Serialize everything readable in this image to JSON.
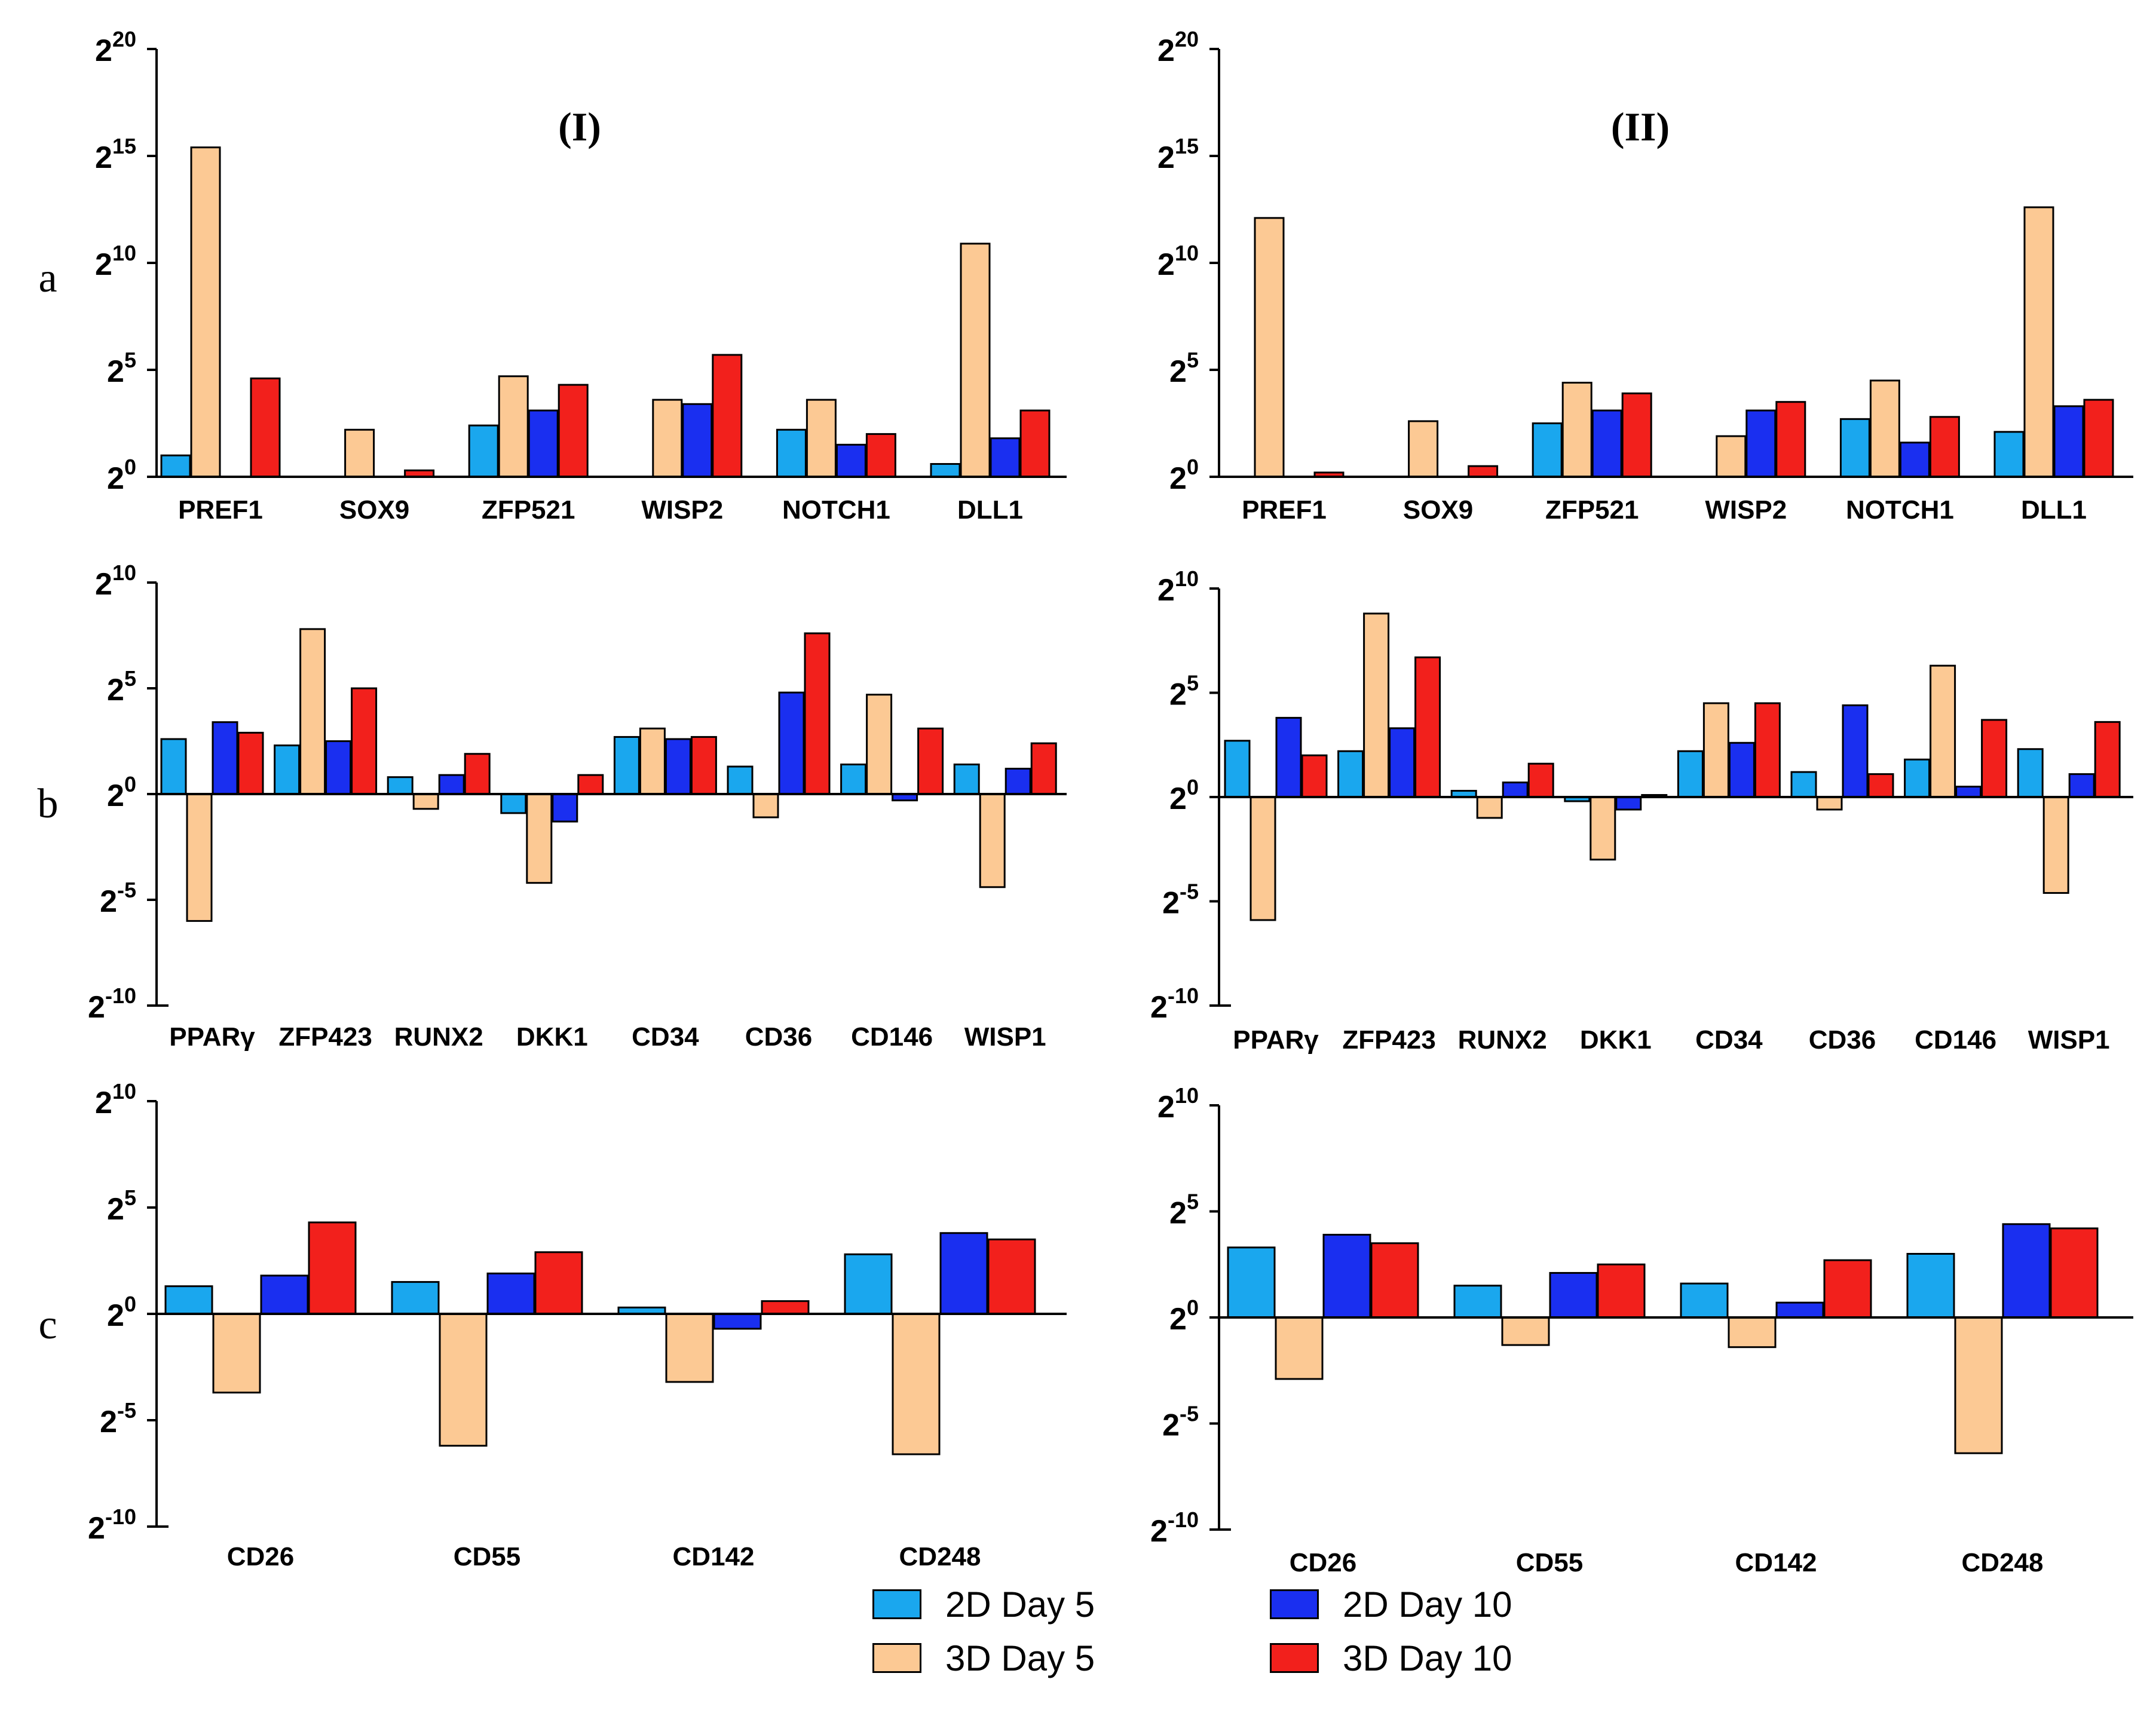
{
  "colors": {
    "2d_day5": "#1aa7ee",
    "3d_day5": "#fcc994",
    "2d_day10": "#1a2ff0",
    "3d_day10": "#f2201c"
  },
  "legend": {
    "items": [
      {
        "label": "2D Day 5",
        "color": "#1aa7ee"
      },
      {
        "label": "3D Day 5",
        "color": "#fcc994"
      },
      {
        "label": "2D Day 10",
        "color": "#1a2ff0"
      },
      {
        "label": "3D Day 10",
        "color": "#f2201c"
      }
    ]
  },
  "row_labels": [
    "a",
    "b",
    "c"
  ],
  "chart_data": [
    {
      "id": "a-I",
      "type": "bar",
      "row": "a",
      "title": "(I)",
      "y_unit": "log2",
      "ylim": [
        0,
        20
      ],
      "yticks": [
        0,
        5,
        10,
        15,
        20
      ],
      "baseline": 0,
      "categories": [
        "PREF1",
        "SOX9",
        "ZFP521",
        "WISP2",
        "NOTCH1",
        "DLL1"
      ],
      "series": [
        {
          "name": "2D Day 5",
          "values": [
            1.0,
            0,
            2.4,
            0,
            2.2,
            0.6
          ]
        },
        {
          "name": "3D Day 5",
          "values": [
            15.4,
            2.2,
            4.7,
            3.6,
            3.6,
            10.9
          ]
        },
        {
          "name": "2D Day 10",
          "values": [
            0,
            0,
            3.1,
            3.4,
            1.5,
            1.8
          ]
        },
        {
          "name": "3D Day 10",
          "values": [
            4.6,
            0.3,
            4.3,
            5.7,
            2.0,
            3.1
          ]
        }
      ]
    },
    {
      "id": "a-II",
      "type": "bar",
      "row": "a",
      "title": "(II)",
      "y_unit": "log2",
      "ylim": [
        0,
        20
      ],
      "yticks": [
        0,
        5,
        10,
        15,
        20
      ],
      "baseline": 0,
      "categories": [
        "PREF1",
        "SOX9",
        "ZFP521",
        "WISP2",
        "NOTCH1",
        "DLL1"
      ],
      "series": [
        {
          "name": "2D Day 5",
          "values": [
            0,
            0,
            2.5,
            0,
            2.7,
            2.1
          ]
        },
        {
          "name": "3D Day 5",
          "values": [
            12.1,
            2.6,
            4.4,
            1.9,
            4.5,
            12.6
          ]
        },
        {
          "name": "2D Day 10",
          "values": [
            0,
            0,
            3.1,
            3.1,
            1.6,
            3.3
          ]
        },
        {
          "name": "3D Day 10",
          "values": [
            0.2,
            0.5,
            3.9,
            3.5,
            2.8,
            3.6
          ]
        }
      ]
    },
    {
      "id": "b-I",
      "type": "bar",
      "row": "b",
      "title": "",
      "y_unit": "log2",
      "ylim": [
        -10,
        10
      ],
      "yticks": [
        -10,
        -5,
        0,
        5,
        10
      ],
      "baseline": 0,
      "categories": [
        "PPARγ",
        "ZFP423",
        "RUNX2",
        "DKK1",
        "CD34",
        "CD36",
        "CD146",
        "WISP1"
      ],
      "series": [
        {
          "name": "2D Day 5",
          "values": [
            2.6,
            2.3,
            0.8,
            -0.9,
            2.7,
            1.3,
            1.4,
            1.4
          ]
        },
        {
          "name": "3D Day 5",
          "values": [
            -6.0,
            7.8,
            -0.7,
            -4.2,
            3.1,
            -1.1,
            4.7,
            -4.4
          ]
        },
        {
          "name": "2D Day 10",
          "values": [
            3.4,
            2.5,
            0.9,
            -1.3,
            2.6,
            4.8,
            -0.3,
            1.2
          ]
        },
        {
          "name": "3D Day 10",
          "values": [
            2.9,
            5.0,
            1.9,
            0.9,
            2.7,
            7.6,
            3.1,
            2.4
          ]
        }
      ]
    },
    {
      "id": "b-II",
      "type": "bar",
      "row": "b",
      "title": "",
      "y_unit": "log2",
      "ylim": [
        -10,
        10
      ],
      "yticks": [
        -10,
        -5,
        0,
        5,
        10
      ],
      "baseline": 0,
      "categories": [
        "PPARγ",
        "ZFP423",
        "RUNX2",
        "DKK1",
        "CD34",
        "CD36",
        "CD146",
        "WISP1"
      ],
      "series": [
        {
          "name": "2D Day 5",
          "values": [
            2.7,
            2.2,
            0.3,
            -0.2,
            2.2,
            1.2,
            1.8,
            2.3
          ]
        },
        {
          "name": "3D Day 5",
          "values": [
            -5.9,
            8.8,
            -1.0,
            -3.0,
            4.5,
            -0.6,
            6.3,
            -4.6
          ]
        },
        {
          "name": "2D Day 10",
          "values": [
            3.8,
            3.3,
            0.7,
            -0.6,
            2.6,
            4.4,
            0.5,
            1.1
          ]
        },
        {
          "name": "3D Day 10",
          "values": [
            2.0,
            6.7,
            1.6,
            0.1,
            4.5,
            1.1,
            3.7,
            3.6
          ]
        }
      ]
    },
    {
      "id": "c-I",
      "type": "bar",
      "row": "c",
      "title": "",
      "y_unit": "log2",
      "ylim": [
        -10,
        10
      ],
      "yticks": [
        -10,
        -5,
        0,
        5,
        10
      ],
      "baseline": 0,
      "categories": [
        "CD26",
        "CD55",
        "CD142",
        "CD248"
      ],
      "series": [
        {
          "name": "2D Day 5",
          "values": [
            1.3,
            1.5,
            0.3,
            2.8
          ]
        },
        {
          "name": "3D Day 5",
          "values": [
            -3.7,
            -6.2,
            -3.2,
            -6.6
          ]
        },
        {
          "name": "2D Day 10",
          "values": [
            1.8,
            1.9,
            -0.7,
            3.8
          ]
        },
        {
          "name": "3D Day 10",
          "values": [
            4.3,
            2.9,
            0.6,
            3.5
          ]
        }
      ]
    },
    {
      "id": "c-II",
      "type": "bar",
      "row": "c",
      "title": "",
      "y_unit": "log2",
      "ylim": [
        -10,
        10
      ],
      "yticks": [
        -10,
        -5,
        0,
        5,
        10
      ],
      "baseline": 0,
      "categories": [
        "CD26",
        "CD55",
        "CD142",
        "CD248"
      ],
      "series": [
        {
          "name": "2D Day 5",
          "values": [
            3.3,
            1.5,
            1.6,
            3.0
          ]
        },
        {
          "name": "3D Day 5",
          "values": [
            -2.9,
            -1.3,
            -1.4,
            -6.4
          ]
        },
        {
          "name": "2D Day 10",
          "values": [
            3.9,
            2.1,
            0.7,
            4.4
          ]
        },
        {
          "name": "3D Day 10",
          "values": [
            3.5,
            2.5,
            2.7,
            4.2
          ]
        }
      ]
    }
  ]
}
